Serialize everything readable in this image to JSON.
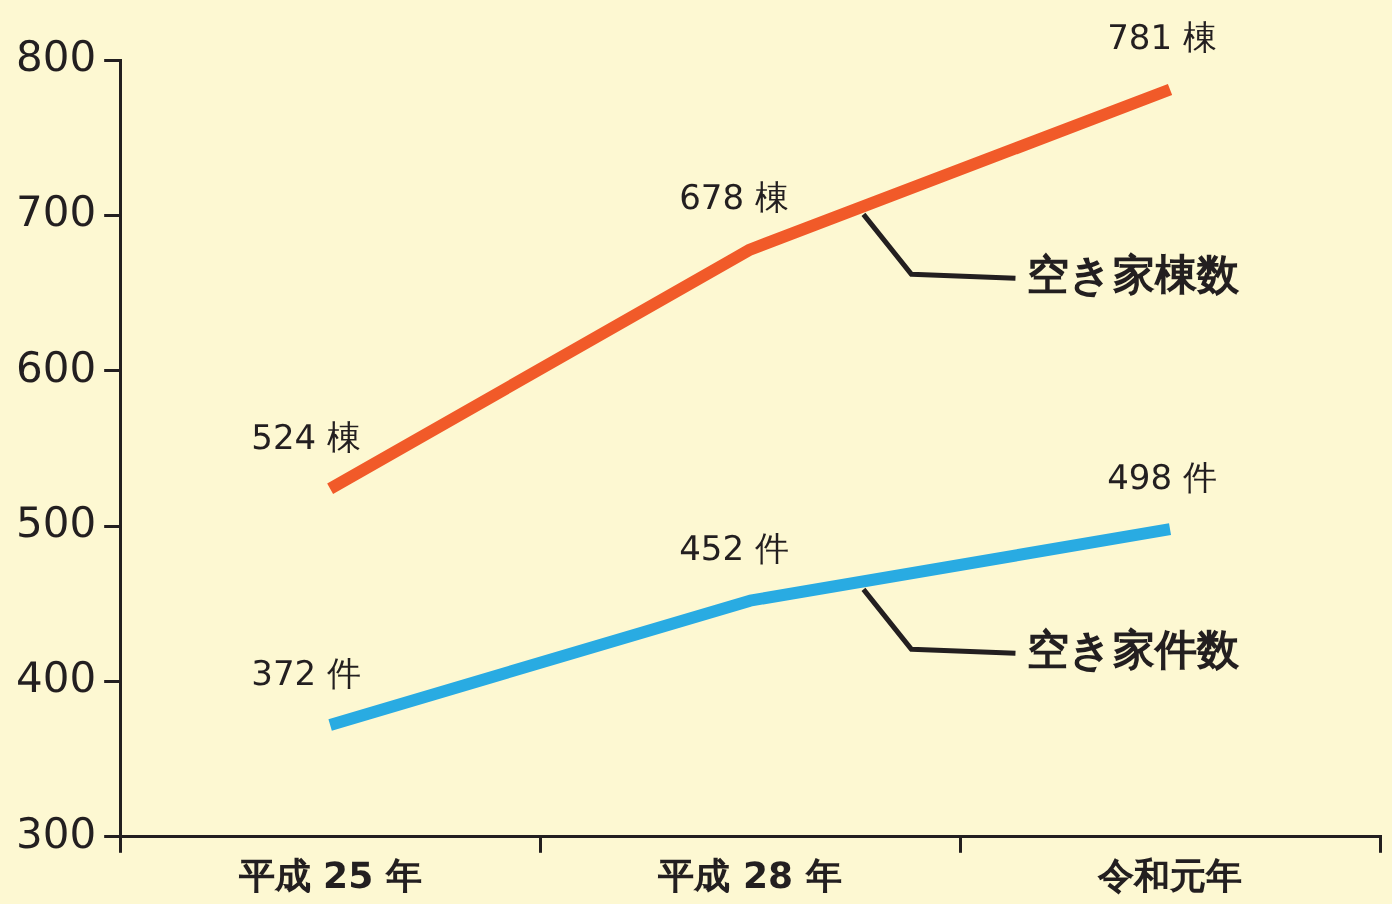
{
  "chart_data": {
    "type": "line",
    "categories": [
      "平成 25 年",
      "平成 28 年",
      "令和元年"
    ],
    "series": [
      {
        "name": "空き家棟数",
        "color": "#f15a29",
        "values": [
          524,
          678,
          781
        ],
        "value_labels": [
          "524 棟",
          "678 棟",
          "781 棟"
        ]
      },
      {
        "name": "空き家件数",
        "color": "#29abe2",
        "values": [
          372,
          452,
          498
        ],
        "value_labels": [
          "372 件",
          "452 件",
          "498 件"
        ]
      }
    ],
    "ylim": [
      300,
      800
    ],
    "yticks": [
      300,
      400,
      500,
      600,
      700,
      800
    ],
    "grid": false,
    "legend": false,
    "marker": "none",
    "line_style": "solid"
  }
}
